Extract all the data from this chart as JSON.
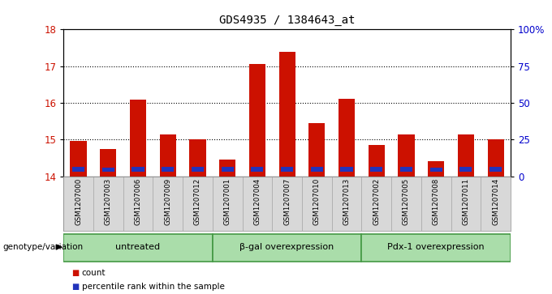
{
  "title": "GDS4935 / 1384643_at",
  "samples": [
    "GSM1207000",
    "GSM1207003",
    "GSM1207006",
    "GSM1207009",
    "GSM1207012",
    "GSM1207001",
    "GSM1207004",
    "GSM1207007",
    "GSM1207010",
    "GSM1207013",
    "GSM1207002",
    "GSM1207005",
    "GSM1207008",
    "GSM1207011",
    "GSM1207014"
  ],
  "red_values": [
    14.97,
    14.75,
    16.08,
    15.15,
    15.02,
    14.45,
    17.05,
    17.4,
    15.45,
    16.12,
    14.85,
    15.15,
    14.42,
    15.15,
    15.02
  ],
  "blue_bottoms": [
    14.13,
    14.12,
    14.13,
    14.13,
    14.12,
    14.12,
    14.13,
    14.13,
    14.13,
    14.13,
    14.12,
    14.13,
    14.12,
    14.13,
    14.13
  ],
  "blue_heights": [
    0.13,
    0.11,
    0.13,
    0.12,
    0.14,
    0.15,
    0.13,
    0.13,
    0.13,
    0.13,
    0.13,
    0.13,
    0.11,
    0.13,
    0.13
  ],
  "ylim_left": [
    14,
    18
  ],
  "yticks_left": [
    14,
    15,
    16,
    17,
    18
  ],
  "yticks_right": [
    0,
    25,
    50,
    75,
    100
  ],
  "ytick_labels_right": [
    "0",
    "25",
    "50",
    "75",
    "100%"
  ],
  "bar_color": "#cc1100",
  "blue_color": "#2233bb",
  "plot_bg": "#ffffff",
  "sample_box_color": "#d8d8d8",
  "groups": [
    {
      "label": "untreated",
      "start": 0,
      "end": 5
    },
    {
      "label": "β-gal overexpression",
      "start": 5,
      "end": 10
    },
    {
      "label": "Pdx-1 overexpression",
      "start": 10,
      "end": 15
    }
  ],
  "group_color": "#aaddaa",
  "group_border": "#449944",
  "left_label": "genotype/variation",
  "legend_count": "count",
  "legend_percentile": "percentile rank within the sample",
  "tick_label_color_left": "#cc1100",
  "tick_label_color_right": "#0000cc",
  "bar_width": 0.55
}
